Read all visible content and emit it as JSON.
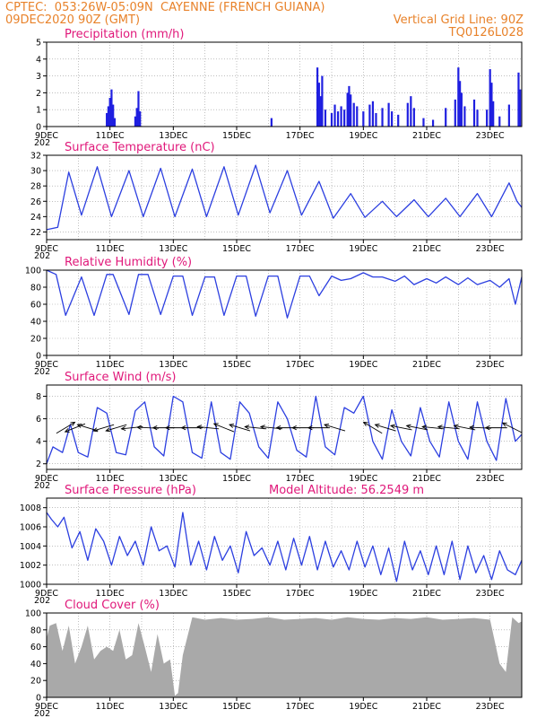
{
  "header": {
    "line1": "CPTEC:  053:26W-05:09N  CAYENNE (FRENCH GUIANA)",
    "line2": "09DEC2020 90Z (GMT)",
    "grid_note": "Vertical Grid Line: 90Z",
    "run_id": "TQ0126L028"
  },
  "colors": {
    "header": "#e8822a",
    "title": "#e0187a",
    "line": "#2c3fe0",
    "bar": "#1f1fe0",
    "cloud": "#a9a9a9",
    "grid": "#999999"
  },
  "x_axis": {
    "start_day": 9,
    "end_day": 24,
    "label_days": [
      9,
      11,
      13,
      15,
      17,
      19,
      21,
      23
    ],
    "labels": [
      "9DEC",
      "11DEC",
      "13DEC",
      "15DEC",
      "17DEC",
      "19DEC",
      "21DEC",
      "23DEC"
    ],
    "year_stub": "202"
  },
  "chart_data": [
    {
      "type": "bar",
      "title": "Precipitation (mm/h)",
      "ylim": [
        0,
        5
      ],
      "yticks": [
        0,
        1,
        2,
        3,
        4,
        5
      ],
      "grid": true,
      "events": [
        {
          "day": 10.9,
          "value": 0.8
        },
        {
          "day": 10.95,
          "value": 1.2
        },
        {
          "day": 11.0,
          "value": 1.7
        },
        {
          "day": 11.05,
          "value": 2.2
        },
        {
          "day": 11.1,
          "value": 1.3
        },
        {
          "day": 11.15,
          "value": 0.5
        },
        {
          "day": 11.8,
          "value": 0.6
        },
        {
          "day": 11.85,
          "value": 1.1
        },
        {
          "day": 11.9,
          "value": 2.1
        },
        {
          "day": 11.95,
          "value": 0.9
        },
        {
          "day": 16.1,
          "value": 0.5
        },
        {
          "day": 17.55,
          "value": 3.5
        },
        {
          "day": 17.6,
          "value": 2.6
        },
        {
          "day": 17.65,
          "value": 1.8
        },
        {
          "day": 17.7,
          "value": 3.0
        },
        {
          "day": 17.8,
          "value": 1.0
        },
        {
          "day": 18.0,
          "value": 0.8
        },
        {
          "day": 18.1,
          "value": 1.3
        },
        {
          "day": 18.2,
          "value": 0.9
        },
        {
          "day": 18.3,
          "value": 1.2
        },
        {
          "day": 18.4,
          "value": 1.0
        },
        {
          "day": 18.5,
          "value": 2.0
        },
        {
          "day": 18.55,
          "value": 2.4
        },
        {
          "day": 18.6,
          "value": 1.9
        },
        {
          "day": 18.7,
          "value": 1.4
        },
        {
          "day": 18.8,
          "value": 1.2
        },
        {
          "day": 19.0,
          "value": 0.9
        },
        {
          "day": 19.2,
          "value": 1.3
        },
        {
          "day": 19.3,
          "value": 1.5
        },
        {
          "day": 19.4,
          "value": 0.8
        },
        {
          "day": 19.6,
          "value": 1.1
        },
        {
          "day": 19.8,
          "value": 1.4
        },
        {
          "day": 19.9,
          "value": 0.9
        },
        {
          "day": 20.1,
          "value": 0.7
        },
        {
          "day": 20.4,
          "value": 1.4
        },
        {
          "day": 20.5,
          "value": 1.8
        },
        {
          "day": 20.6,
          "value": 1.1
        },
        {
          "day": 20.9,
          "value": 0.5
        },
        {
          "day": 21.2,
          "value": 0.4
        },
        {
          "day": 21.6,
          "value": 1.1
        },
        {
          "day": 21.9,
          "value": 1.6
        },
        {
          "day": 22.0,
          "value": 3.5
        },
        {
          "day": 22.05,
          "value": 2.7
        },
        {
          "day": 22.1,
          "value": 2.0
        },
        {
          "day": 22.2,
          "value": 1.2
        },
        {
          "day": 22.5,
          "value": 1.6
        },
        {
          "day": 22.6,
          "value": 1.0
        },
        {
          "day": 22.9,
          "value": 1.0
        },
        {
          "day": 23.0,
          "value": 3.4
        },
        {
          "day": 23.05,
          "value": 2.6
        },
        {
          "day": 23.1,
          "value": 1.5
        },
        {
          "day": 23.3,
          "value": 0.6
        },
        {
          "day": 23.6,
          "value": 1.3
        },
        {
          "day": 23.9,
          "value": 3.2
        },
        {
          "day": 23.95,
          "value": 2.2
        }
      ]
    },
    {
      "type": "line",
      "title": "Surface Temperature (nC)",
      "ylim": [
        21,
        32
      ],
      "yticks": [
        22,
        24,
        26,
        28,
        30,
        32
      ],
      "grid": true,
      "x": [
        9.0,
        9.35,
        9.7,
        10.1,
        10.6,
        11.05,
        11.6,
        12.05,
        12.6,
        13.05,
        13.6,
        14.05,
        14.6,
        15.05,
        15.6,
        16.05,
        16.6,
        17.05,
        17.6,
        18.05,
        18.6,
        19.05,
        19.6,
        20.05,
        20.6,
        21.05,
        21.6,
        22.05,
        22.6,
        23.05,
        23.6,
        23.85,
        24.0
      ],
      "y": [
        22.3,
        22.6,
        29.8,
        24.2,
        30.5,
        24.0,
        30.0,
        24.0,
        30.3,
        24.0,
        30.2,
        24.0,
        30.5,
        24.2,
        30.7,
        24.5,
        30.0,
        24.2,
        28.6,
        23.8,
        27.0,
        23.9,
        26.0,
        24.0,
        26.2,
        24.0,
        26.4,
        24.0,
        27.0,
        24.0,
        28.4,
        26.0,
        25.2
      ]
    },
    {
      "type": "line",
      "title": "Relative Humidity (%)",
      "ylim": [
        0,
        100
      ],
      "yticks": [
        0,
        20,
        40,
        60,
        80,
        100
      ],
      "grid": true,
      "x": [
        9.0,
        9.3,
        9.6,
        10.1,
        10.5,
        10.9,
        11.1,
        11.6,
        11.9,
        12.2,
        12.6,
        13.0,
        13.3,
        13.6,
        14.0,
        14.3,
        14.6,
        15.0,
        15.3,
        15.6,
        16.0,
        16.3,
        16.6,
        17.0,
        17.3,
        17.6,
        18.0,
        18.3,
        18.6,
        19.0,
        19.3,
        19.6,
        20.0,
        20.3,
        20.6,
        21.0,
        21.3,
        21.6,
        22.0,
        22.3,
        22.6,
        23.0,
        23.3,
        23.6,
        23.8,
        24.0
      ],
      "y": [
        100,
        95,
        47,
        92,
        47,
        95,
        95,
        48,
        95,
        95,
        48,
        93,
        93,
        47,
        92,
        92,
        47,
        93,
        93,
        46,
        93,
        93,
        44,
        93,
        93,
        70,
        93,
        88,
        90,
        97,
        92,
        92,
        87,
        93,
        83,
        90,
        85,
        92,
        83,
        91,
        83,
        88,
        80,
        90,
        60,
        92
      ]
    },
    {
      "type": "line",
      "title": "Surface Wind (m/s)",
      "ylim": [
        1.5,
        9
      ],
      "yticks": [
        2,
        4,
        6,
        8
      ],
      "grid": true,
      "x": [
        9.0,
        9.2,
        9.5,
        9.75,
        10.0,
        10.3,
        10.6,
        10.9,
        11.2,
        11.5,
        11.8,
        12.1,
        12.4,
        12.7,
        13.0,
        13.3,
        13.6,
        13.9,
        14.2,
        14.5,
        14.8,
        15.1,
        15.4,
        15.7,
        16.0,
        16.3,
        16.6,
        16.9,
        17.2,
        17.5,
        17.8,
        18.1,
        18.4,
        18.7,
        19.0,
        19.3,
        19.6,
        19.9,
        20.2,
        20.5,
        20.8,
        21.1,
        21.4,
        21.7,
        22.0,
        22.3,
        22.6,
        22.9,
        23.2,
        23.5,
        23.8,
        24.0
      ],
      "y": [
        2.0,
        3.5,
        3.0,
        5.5,
        3.0,
        2.6,
        7.0,
        6.5,
        3.0,
        2.8,
        6.7,
        7.5,
        3.5,
        2.7,
        8.0,
        7.5,
        3.0,
        2.5,
        7.5,
        3.0,
        2.4,
        7.5,
        6.5,
        3.5,
        2.5,
        7.5,
        6.0,
        3.2,
        2.6,
        8.0,
        3.5,
        2.8,
        7.0,
        6.5,
        8.0,
        4.0,
        2.4,
        6.8,
        4.0,
        2.7,
        7.0,
        4.0,
        2.6,
        7.5,
        4.0,
        2.4,
        7.5,
        4.0,
        2.3,
        7.8,
        4.0,
        4.6
      ],
      "vectors": [
        {
          "day": 9.6,
          "dir_x": 1,
          "dir_y": 0.6
        },
        {
          "day": 9.9,
          "dir_x": -1,
          "dir_y": -0.4
        },
        {
          "day": 10.3,
          "dir_x": -1,
          "dir_y": 0.3
        },
        {
          "day": 10.8,
          "dir_x": -1,
          "dir_y": -0.3
        },
        {
          "day": 11.2,
          "dir_x": -1,
          "dir_y": -0.3
        },
        {
          "day": 11.7,
          "dir_x": -1,
          "dir_y": -0.1
        },
        {
          "day": 12.2,
          "dir_x": -1,
          "dir_y": 0.05
        },
        {
          "day": 12.7,
          "dir_x": -1,
          "dir_y": 0
        },
        {
          "day": 13.1,
          "dir_x": -1,
          "dir_y": 0
        },
        {
          "day": 13.6,
          "dir_x": -1,
          "dir_y": 0
        },
        {
          "day": 14.1,
          "dir_x": -1,
          "dir_y": 0.1
        },
        {
          "day": 14.6,
          "dir_x": -1,
          "dir_y": 0.4
        },
        {
          "day": 15.1,
          "dir_x": -1,
          "dir_y": 0.3
        },
        {
          "day": 15.6,
          "dir_x": -1,
          "dir_y": 0.1
        },
        {
          "day": 16.1,
          "dir_x": -1,
          "dir_y": 0.1
        },
        {
          "day": 16.6,
          "dir_x": -1,
          "dir_y": 0
        },
        {
          "day": 17.1,
          "dir_x": -1,
          "dir_y": 0
        },
        {
          "day": 17.6,
          "dir_x": -1,
          "dir_y": 0
        },
        {
          "day": 18.1,
          "dir_x": -1,
          "dir_y": 0.3
        },
        {
          "day": 19.3,
          "dir_x": -1,
          "dir_y": 0.6
        },
        {
          "day": 19.7,
          "dir_x": -1,
          "dir_y": 0.3
        },
        {
          "day": 20.2,
          "dir_x": -1,
          "dir_y": 0.2
        },
        {
          "day": 20.7,
          "dir_x": -1,
          "dir_y": 0.2
        },
        {
          "day": 21.2,
          "dir_x": -1,
          "dir_y": 0.1
        },
        {
          "day": 21.7,
          "dir_x": -1,
          "dir_y": 0.1
        },
        {
          "day": 22.2,
          "dir_x": -1,
          "dir_y": 0.2
        },
        {
          "day": 22.7,
          "dir_x": -1,
          "dir_y": 0.05
        },
        {
          "day": 23.2,
          "dir_x": -1,
          "dir_y": 0
        },
        {
          "day": 23.7,
          "dir_x": -1,
          "dir_y": 0.5
        }
      ]
    },
    {
      "type": "line",
      "title": "Surface Pressure (hPa)",
      "annotation": "Model Altitude: 56.2549 m",
      "ylim": [
        1000,
        1009
      ],
      "yticks": [
        1000,
        1002,
        1004,
        1006,
        1008
      ],
      "grid": true,
      "x": [
        9.0,
        9.15,
        9.35,
        9.55,
        9.8,
        10.05,
        10.3,
        10.55,
        10.8,
        11.05,
        11.3,
        11.55,
        11.8,
        12.05,
        12.3,
        12.55,
        12.8,
        13.05,
        13.3,
        13.55,
        13.8,
        14.05,
        14.3,
        14.55,
        14.8,
        15.05,
        15.3,
        15.55,
        15.8,
        16.05,
        16.3,
        16.55,
        16.8,
        17.05,
        17.3,
        17.55,
        17.8,
        18.05,
        18.3,
        18.55,
        18.8,
        19.05,
        19.3,
        19.55,
        19.8,
        20.05,
        20.3,
        20.55,
        20.8,
        21.05,
        21.3,
        21.55,
        21.8,
        22.05,
        22.3,
        22.55,
        22.8,
        23.05,
        23.3,
        23.55,
        23.8,
        24.0
      ],
      "y": [
        1007.5,
        1006.8,
        1006.0,
        1007.0,
        1003.8,
        1005.5,
        1002.5,
        1005.8,
        1004.5,
        1002.0,
        1005.0,
        1003.0,
        1004.5,
        1002.0,
        1006.0,
        1003.5,
        1004.0,
        1001.8,
        1007.5,
        1002.0,
        1004.5,
        1001.5,
        1005.0,
        1002.5,
        1004.0,
        1001.2,
        1005.5,
        1003.0,
        1003.8,
        1002.0,
        1004.5,
        1001.5,
        1004.8,
        1002.0,
        1005.0,
        1001.5,
        1004.5,
        1001.8,
        1003.5,
        1001.5,
        1004.5,
        1001.8,
        1004.0,
        1001.0,
        1003.8,
        1000.3,
        1004.5,
        1001.5,
        1003.5,
        1001.0,
        1004.0,
        1001.0,
        1004.5,
        1000.5,
        1004.0,
        1001.2,
        1003.0,
        1000.5,
        1003.5,
        1001.5,
        1001.0,
        1002.5
      ]
    },
    {
      "type": "area",
      "title": "Cloud Cover (%)",
      "ylim": [
        0,
        100
      ],
      "yticks": [
        0,
        20,
        40,
        60,
        80,
        100
      ],
      "grid": true,
      "x": [
        9.0,
        9.1,
        9.3,
        9.5,
        9.7,
        9.9,
        10.1,
        10.3,
        10.5,
        10.7,
        10.9,
        11.1,
        11.3,
        11.5,
        11.7,
        11.9,
        12.1,
        12.3,
        12.5,
        12.7,
        12.9,
        13.05,
        13.15,
        13.3,
        13.6,
        14.0,
        14.5,
        15.0,
        15.5,
        16.0,
        16.5,
        17.0,
        17.5,
        18.0,
        18.5,
        19.0,
        19.5,
        20.0,
        20.5,
        21.0,
        21.5,
        22.0,
        22.5,
        23.0,
        23.3,
        23.5,
        23.7,
        23.9,
        24.0
      ],
      "y": [
        70,
        85,
        88,
        55,
        85,
        40,
        60,
        85,
        45,
        55,
        60,
        55,
        80,
        45,
        50,
        88,
        60,
        30,
        75,
        40,
        45,
        2,
        5,
        50,
        95,
        92,
        94,
        92,
        93,
        95,
        92,
        93,
        94,
        92,
        95,
        93,
        92,
        94,
        93,
        95,
        92,
        93,
        94,
        92,
        40,
        30,
        95,
        88,
        90
      ]
    }
  ]
}
